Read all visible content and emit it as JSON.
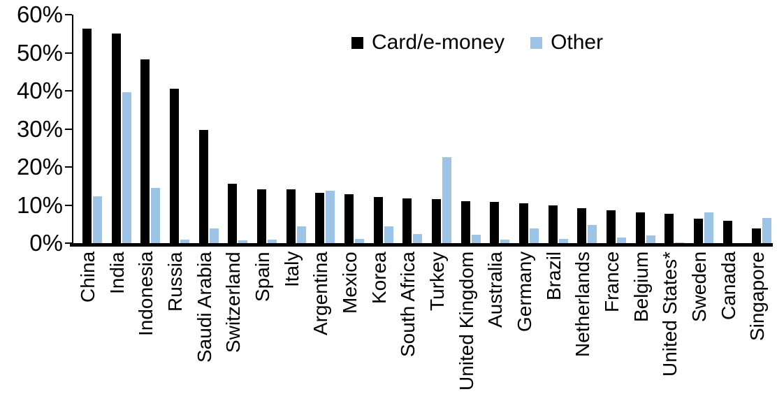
{
  "chart_data": {
    "type": "bar",
    "title": "",
    "xlabel": "",
    "ylabel": "",
    "ylim": [
      0,
      60
    ],
    "grid": false,
    "legend_position": "top-center",
    "yticks": [
      {
        "label": "0%",
        "value": 0
      },
      {
        "label": "10%",
        "value": 10
      },
      {
        "label": "20%",
        "value": 20
      },
      {
        "label": "30%",
        "value": 30
      },
      {
        "label": "40%",
        "value": 40
      },
      {
        "label": "50%",
        "value": 50
      },
      {
        "label": "60%",
        "value": 60
      }
    ],
    "categories": [
      "China",
      "India",
      "Indonesia",
      "Russia",
      "Saudi Arabia",
      "Switzerland",
      "Spain",
      "Italy",
      "Argentina",
      "Mexico",
      "Korea",
      "South Africa",
      "Turkey",
      "United Kingdom",
      "Australia",
      "Germany",
      "Brazil",
      "Netherlands",
      "France",
      "Belgium",
      "United States*",
      "Sweden",
      "Canada",
      "Singapore"
    ],
    "series": [
      {
        "name": "Card/e-money",
        "color": "#000000",
        "values": [
          56.3,
          55.0,
          48.3,
          40.5,
          29.8,
          15.6,
          14.2,
          14.1,
          13.3,
          12.9,
          12.1,
          11.7,
          11.5,
          11.0,
          10.8,
          10.5,
          10.0,
          9.2,
          8.6,
          8.1,
          7.8,
          6.4,
          5.9,
          3.8
        ]
      },
      {
        "name": "Other",
        "color": "#9DC3E6",
        "values": [
          12.3,
          39.7,
          14.5,
          0.9,
          3.9,
          0.7,
          0.9,
          4.5,
          13.7,
          1.2,
          4.5,
          2.4,
          22.5,
          2.3,
          0.9,
          3.9,
          1.1,
          4.7,
          1.4,
          2.1,
          0.2,
          8.0,
          0,
          6.6
        ]
      }
    ],
    "axis_color": "#000000",
    "background_color": "#ffffff"
  }
}
